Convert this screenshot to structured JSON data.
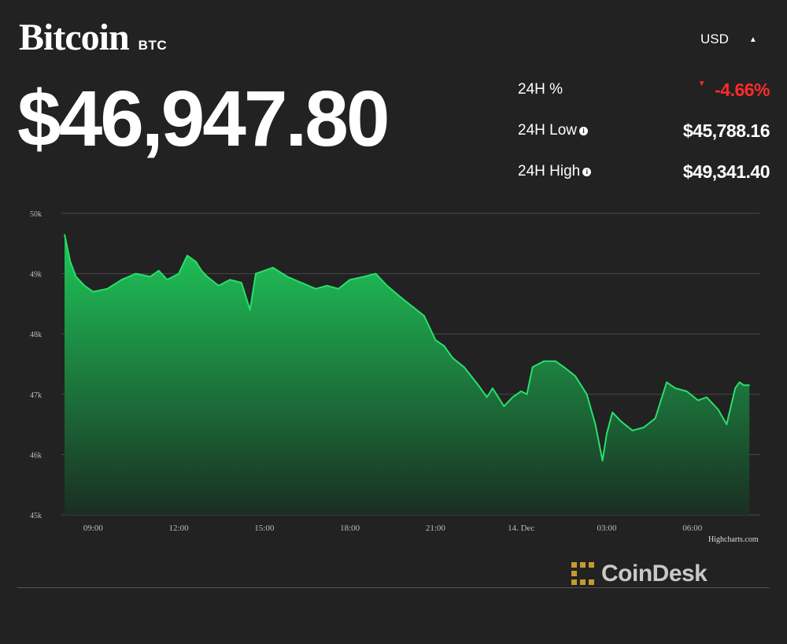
{
  "header": {
    "name": "Bitcoin",
    "symbol": "BTC",
    "price": "$46,947.80",
    "currency": "USD"
  },
  "stats": [
    {
      "label": "24H %",
      "value": "-4.66%",
      "direction": "down",
      "info": false
    },
    {
      "label": "24H Low",
      "value": "$45,788.16",
      "info": true
    },
    {
      "label": "24H High",
      "value": "$49,341.40",
      "info": true
    }
  ],
  "icons": {
    "currency_caret": "caret-up-icon",
    "change": "down-triangle-icon",
    "info": "info-icon",
    "brand": "coindesk-logo-icon"
  },
  "colors": {
    "background": "#222222",
    "line": "#27e06b",
    "area_top": "#1fc95a",
    "area_bottom": "#1a2e22",
    "negative": "#ff2a2a",
    "grid": "#4a4a4a",
    "brand": "#c59a2e"
  },
  "credit": "Highcharts.com",
  "brand": "CoinDesk",
  "chart_data": {
    "type": "area",
    "y_tick_labels": [
      "50k",
      "49k",
      "48k",
      "47k",
      "46k",
      "45k"
    ],
    "y_ticks": [
      50000,
      49000,
      48000,
      47000,
      46000,
      45000
    ],
    "ylim": [
      45000,
      50000
    ],
    "x_tick_labels": [
      "09:00",
      "12:00",
      "15:00",
      "18:00",
      "21:00",
      "14. Dec",
      "03:00",
      "06:00"
    ],
    "x_ticks": [
      9,
      12,
      15,
      18,
      21,
      24,
      27,
      30
    ],
    "xlim": [
      8,
      32
    ],
    "grid": true,
    "series": [
      {
        "x": [
          8.0,
          8.2,
          8.4,
          8.7,
          9.0,
          9.5,
          10.0,
          10.5,
          11.0,
          11.3,
          11.6,
          12.0,
          12.3,
          12.6,
          12.8,
          13.0,
          13.4,
          13.8,
          14.2,
          14.5,
          14.7,
          15.0,
          15.3,
          15.8,
          16.3,
          16.8,
          17.2,
          17.6,
          18.0,
          18.5,
          18.9,
          19.3,
          19.8,
          20.2,
          20.6,
          21.0,
          21.3,
          21.6,
          22.0,
          22.5,
          22.8,
          23.0,
          23.4,
          23.7,
          24.0,
          24.2,
          24.4,
          24.8,
          25.2,
          25.5,
          25.9,
          26.3,
          26.6,
          26.85,
          27.0,
          27.2,
          27.5,
          27.9,
          28.3,
          28.7,
          29.1,
          29.4,
          29.8,
          30.2,
          30.5,
          30.9,
          31.2,
          31.5,
          31.65,
          31.8,
          32.0
        ],
        "y": [
          49650,
          49200,
          48950,
          48800,
          48700,
          48750,
          48900,
          49000,
          48950,
          49050,
          48900,
          49000,
          49300,
          49200,
          49050,
          48950,
          48800,
          48900,
          48850,
          48400,
          49000,
          49050,
          49100,
          48950,
          48850,
          48750,
          48800,
          48750,
          48900,
          48950,
          49000,
          48800,
          48600,
          48450,
          48300,
          47900,
          47800,
          47600,
          47450,
          47150,
          46950,
          47100,
          46800,
          46950,
          47050,
          47000,
          47450,
          47550,
          47550,
          47450,
          47300,
          47000,
          46500,
          45900,
          46350,
          46700,
          46550,
          46400,
          46450,
          46600,
          47200,
          47100,
          47050,
          46900,
          46950,
          46750,
          46500,
          47100,
          47200,
          47150,
          47150
        ]
      }
    ]
  }
}
